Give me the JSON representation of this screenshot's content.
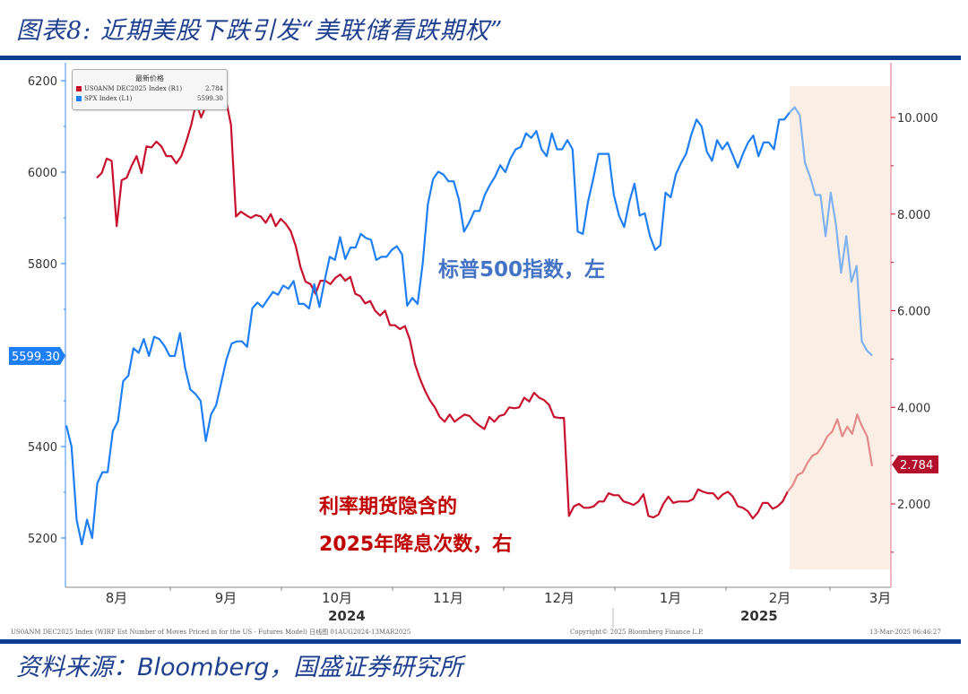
{
  "figure": {
    "title": "图表8:  近期美股下跌引发“美联储看跌期权”",
    "source_prefix": "资料来源：",
    "source_en": "Bloomberg",
    "source_suffix": "，国盛证券研究所"
  },
  "legend": {
    "title": "最新价格",
    "items": [
      {
        "name": "US0ANM DEC2025 Index  (R1)",
        "value": "2.784",
        "color": "#c8102e"
      },
      {
        "name": "SPX Index  (L1)",
        "value": "5599.30",
        "color": "#1e7ff5"
      }
    ]
  },
  "annotations": {
    "spx": "标普500指数，左",
    "rate_line1": "利率期货隐含的",
    "rate_line2": "2025年降息次数，右"
  },
  "axis_badges": {
    "left": "5599.30",
    "right": "2.784"
  },
  "footer": {
    "left_note": "US0ANM DEC2025 Index (WIRP Est Number of Moves Priced in for the US - Futures Model)  日线图 01AUG2024-13MAR2025",
    "center_note": "Copyright© 2025 Bloomberg Finance L.P.",
    "right_note": "13-Mar-2025 06:46:27"
  },
  "colors": {
    "spx": "#1e7ff5",
    "rate": "#c8102e",
    "highlight": "#fbeee4",
    "rule": "#0b3e91"
  },
  "chart_data": {
    "type": "line",
    "title": "近期美股下跌引发“美联储看跌期权”",
    "x_range": [
      "2024-08-01",
      "2025-03-13"
    ],
    "x_ticks": [
      "8月",
      "9月",
      "10月",
      "11月",
      "12月",
      "1月",
      "2月",
      "3月"
    ],
    "year_labels": [
      "2024",
      "2025"
    ],
    "left_axis": {
      "label": "SPX Index (L1)",
      "ticks": [
        5200,
        5400,
        5600,
        5800,
        6000,
        6200
      ],
      "tick_labels": [
        "5200",
        "5400",
        "5800",
        "6000",
        "6200"
      ],
      "ylim": [
        5100,
        6230
      ]
    },
    "right_axis": {
      "label": "US0ANM DEC2025 Index (R1)",
      "ticks": [
        2,
        4,
        6,
        8,
        10
      ],
      "tick_labels": [
        "2.000",
        "4.000",
        "6.000",
        "8.000",
        "10.000"
      ],
      "ylim": [
        0.3,
        11.0
      ]
    },
    "highlight_region": {
      "from": "2025-02-19",
      "to": "2025-03-13"
    },
    "series": [
      {
        "name": "SPX Index (L1)",
        "axis": "left",
        "last": 5599.3,
        "approx_values": [
          5446,
          5400,
          5240,
          5186,
          5240,
          5200,
          5320,
          5344,
          5344,
          5434,
          5455,
          5543,
          5555,
          5615,
          5605,
          5635,
          5598,
          5640,
          5635,
          5620,
          5598,
          5598,
          5648,
          5572,
          5525,
          5515,
          5500,
          5412,
          5470,
          5490,
          5540,
          5590,
          5625,
          5630,
          5630,
          5618,
          5702,
          5715,
          5705,
          5722,
          5738,
          5732,
          5752,
          5745,
          5762,
          5712,
          5712,
          5702,
          5755,
          5705,
          5762,
          5815,
          5808,
          5858,
          5810,
          5835,
          5835,
          5865,
          5856,
          5852,
          5808,
          5815,
          5815,
          5830,
          5838,
          5820,
          5708,
          5725,
          5712,
          5800,
          5930,
          5985,
          6001,
          5995,
          5980,
          5980,
          5940,
          5870,
          5890,
          5915,
          5915,
          5950,
          5972,
          5990,
          6015,
          6000,
          6030,
          6050,
          6055,
          6085,
          6075,
          6090,
          6050,
          6035,
          6085,
          6050,
          6050,
          6070,
          6050,
          5870,
          5865,
          5935,
          5985,
          6040,
          6040,
          6040,
          5950,
          5905,
          5880,
          5935,
          5975,
          5905,
          5910,
          5860,
          5830,
          5840,
          5955,
          5945,
          5995,
          6020,
          6040,
          6082,
          6115,
          6100,
          6045,
          6025,
          6070,
          6050,
          6065,
          6038,
          6010,
          6040,
          6065,
          6080,
          6035,
          6065,
          6065,
          6050,
          6115,
          6115,
          6130,
          6142,
          6125,
          6020,
          5990,
          5950,
          5950,
          5860,
          5955,
          5885,
          5780,
          5860,
          5760,
          5795,
          5630,
          5610,
          5599.3
        ]
      },
      {
        "name": "US0ANM DEC2025 Index (R1)",
        "axis": "right",
        "last": 2.784,
        "approx_values": [
          8.75,
          8.85,
          9.15,
          9.1,
          7.75,
          8.7,
          8.75,
          9.0,
          9.2,
          8.85,
          9.4,
          9.38,
          9.5,
          9.4,
          9.2,
          9.2,
          9.05,
          9.2,
          9.5,
          9.85,
          10.3,
          10.0,
          10.25,
          10.3,
          10.25,
          10.2,
          10.35,
          9.85,
          7.95,
          8.05,
          7.98,
          7.92,
          7.98,
          7.95,
          7.82,
          8.0,
          7.75,
          7.9,
          7.8,
          7.65,
          7.35,
          6.9,
          6.6,
          6.55,
          6.35,
          6.62,
          6.62,
          6.55,
          6.68,
          6.75,
          6.62,
          6.7,
          6.35,
          6.3,
          6.15,
          6.2,
          6.0,
          5.9,
          6.0,
          5.7,
          5.7,
          5.62,
          5.68,
          5.4,
          4.9,
          4.6,
          4.35,
          4.15,
          4.0,
          3.8,
          3.7,
          3.85,
          3.7,
          3.78,
          3.85,
          3.82,
          3.7,
          3.62,
          3.55,
          3.8,
          3.7,
          3.82,
          3.85,
          4.0,
          3.98,
          4.0,
          4.2,
          4.12,
          4.3,
          4.2,
          4.15,
          4.05,
          3.8,
          3.78,
          3.78,
          1.75,
          1.95,
          2.0,
          1.92,
          1.92,
          1.95,
          2.05,
          2.05,
          2.22,
          2.18,
          2.18,
          2.05,
          2.02,
          1.98,
          2.05,
          2.2,
          1.75,
          1.72,
          1.78,
          2.0,
          2.15,
          2.02,
          2.05,
          2.05,
          2.05,
          2.1,
          2.3,
          2.25,
          2.22,
          2.22,
          2.1,
          2.2,
          2.25,
          2.15,
          1.95,
          1.92,
          1.85,
          1.7,
          1.82,
          2.02,
          2.02,
          1.9,
          1.95,
          2.05,
          2.25,
          2.38,
          2.6,
          2.65,
          2.85,
          3.0,
          3.05,
          3.2,
          3.4,
          3.5,
          3.75,
          3.4,
          3.6,
          3.45,
          3.85,
          3.6,
          3.4,
          2.784
        ]
      }
    ]
  }
}
